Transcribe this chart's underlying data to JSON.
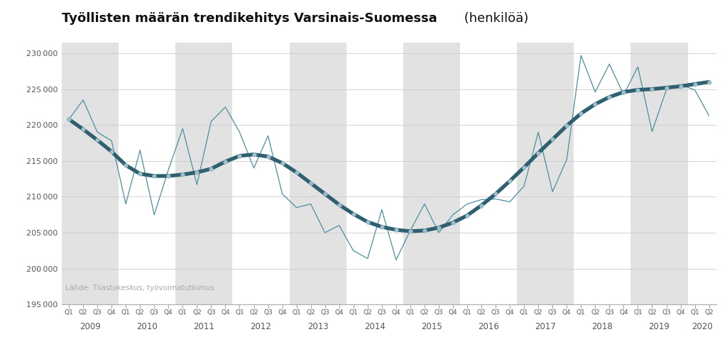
{
  "title_bold": "Työllisten määrän trendikehitys Varsinais-Suomessa",
  "title_normal": " (henkilöä)",
  "source_text": "Lähde: Tilastokeskus, työvoimatutkimus",
  "ylim": [
    195000,
    231500
  ],
  "yticks": [
    195000,
    200000,
    205000,
    210000,
    215000,
    220000,
    225000,
    230000
  ],
  "bg_color": "#ffffff",
  "shaded_color": "#e2e2e2",
  "trend_color": "#2e6070",
  "raw_color": "#4a8fa0",
  "trend_dot_color": "#9bbec8",
  "raw_values": [
    220800,
    223500,
    219000,
    217800,
    209000,
    216500,
    207500,
    213800,
    219500,
    211700,
    220500,
    222500,
    219000,
    214000,
    218500,
    210400,
    208500,
    209000,
    205000,
    206000,
    202500,
    201400,
    208200,
    201200,
    205300,
    209000,
    205000,
    207500,
    209000,
    209600,
    209700,
    209300,
    211500,
    219000,
    210700,
    215200,
    229700,
    224600,
    228500,
    224200,
    228100,
    219100,
    224900,
    225600,
    224900,
    221300
  ],
  "trend_values": [
    220800,
    219400,
    217900,
    216300,
    214400,
    213200,
    212900,
    212900,
    213100,
    213400,
    213900,
    214900,
    215700,
    215900,
    215600,
    214700,
    213400,
    211900,
    210400,
    208900,
    207600,
    206500,
    205800,
    205400,
    205200,
    205300,
    205700,
    206400,
    207400,
    208800,
    210400,
    212200,
    214100,
    216100,
    218000,
    219900,
    221600,
    222900,
    223900,
    224600,
    224900,
    225000,
    225200,
    225400,
    225700,
    226000
  ],
  "years": [
    "2009",
    "2010",
    "2011",
    "2012",
    "2013",
    "2014",
    "2015",
    "2016",
    "2017",
    "2018",
    "2019",
    "2020"
  ],
  "year_starts": [
    0,
    4,
    8,
    12,
    16,
    20,
    24,
    28,
    32,
    36,
    40,
    44
  ],
  "year_ends": [
    4,
    8,
    12,
    16,
    20,
    24,
    28,
    32,
    36,
    40,
    44,
    46
  ],
  "shaded_year_indices": [
    0,
    2,
    4,
    6,
    8,
    10
  ]
}
